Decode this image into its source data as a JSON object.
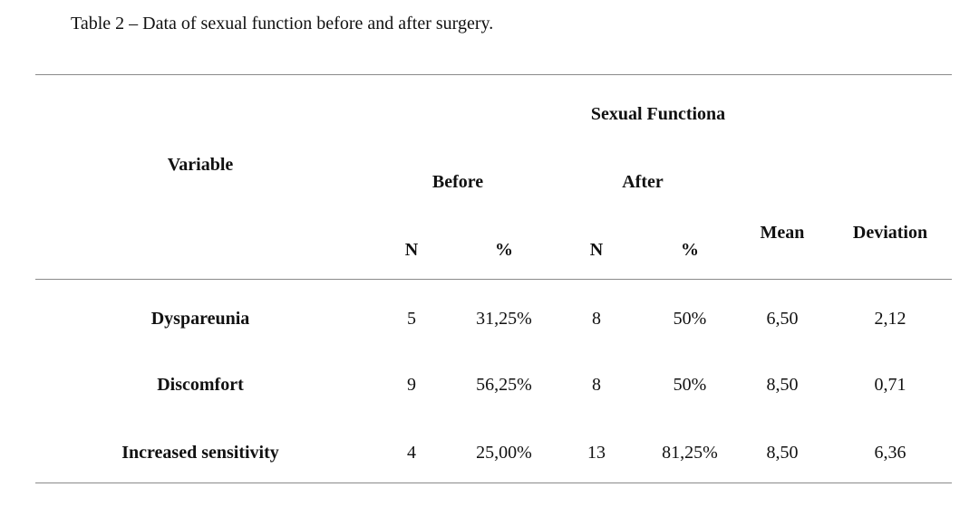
{
  "caption": "Table 2 – Data of sexual function before and after surgery.",
  "table": {
    "header": {
      "variable": "Variable",
      "group": "Sexual Functiona",
      "before": "Before",
      "after": "After",
      "n_before": "N",
      "pct_before": "%",
      "n_after": "N",
      "pct_after": "%",
      "mean": "Mean",
      "deviation": "Deviation"
    },
    "rows": [
      {
        "variable": "Dyspareunia",
        "n_before": "5",
        "pct_before": "31,25%",
        "n_after": "8",
        "pct_after": "50%",
        "mean": "6,50",
        "deviation": "2,12"
      },
      {
        "variable": "Discomfort",
        "n_before": "9",
        "pct_before": "56,25%",
        "n_after": "8",
        "pct_after": "50%",
        "mean": "8,50",
        "deviation": "0,71"
      },
      {
        "variable": "Increased sensitivity",
        "n_before": "4",
        "pct_before": "25,00%",
        "n_after": "13",
        "pct_after": "81,25%",
        "mean": "8,50",
        "deviation": "6,36"
      }
    ]
  }
}
